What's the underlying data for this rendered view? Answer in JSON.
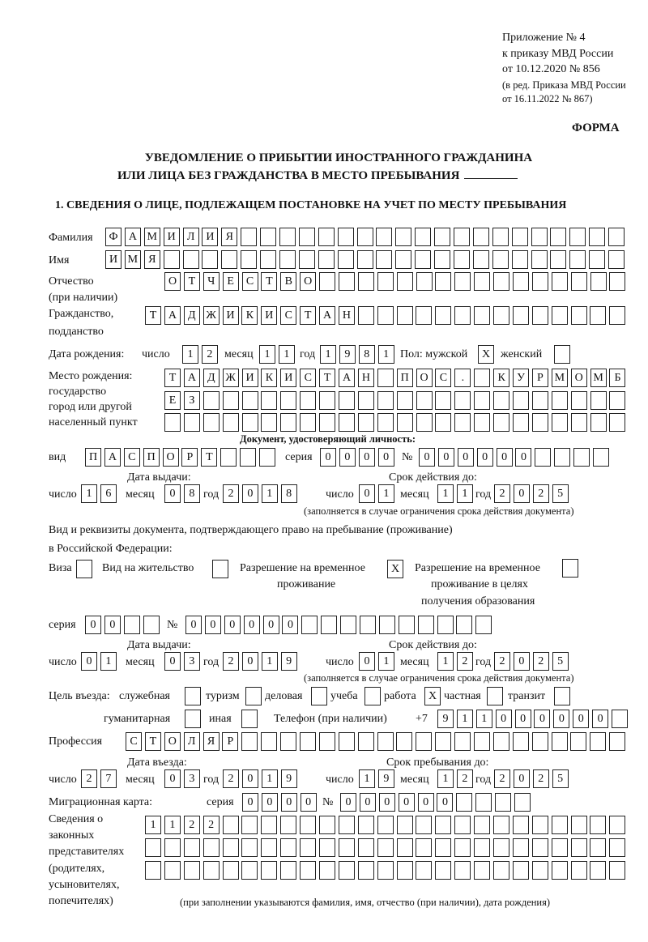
{
  "header": {
    "appendix": "Приложение № 4",
    "order": "к приказу МВД России",
    "order_date": "от 10.12.2020 № 856",
    "revision1": "(в ред. Приказа МВД России",
    "revision2": "от 16.11.2022 № 867)",
    "form_label": "ФОРМА",
    "title1": "УВЕДОМЛЕНИЕ О ПРИБЫТИИ ИНОСТРАННОГО ГРАЖДАНИНА",
    "title2": "ИЛИ ЛИЦА БЕЗ ГРАЖДАНСТВА В МЕСТО ПРЕБЫВАНИЯ",
    "section1": "1. СВЕДЕНИЯ О ЛИЦЕ, ПОДЛЕЖАЩЕМ ПОСТАНОВКЕ НА УЧЕТ ПО МЕСТУ ПРЕБЫВАНИЯ"
  },
  "person": {
    "surname_label": "Фамилия",
    "surname": [
      "Ф",
      "А",
      "М",
      "И",
      "Л",
      "И",
      "Я",
      "",
      "",
      "",
      "",
      "",
      "",
      "",
      "",
      "",
      "",
      "",
      "",
      "",
      "",
      "",
      "",
      "",
      "",
      "",
      ""
    ],
    "name_label": "Имя",
    "name": [
      "И",
      "М",
      "Я",
      "",
      "",
      "",
      "",
      "",
      "",
      "",
      "",
      "",
      "",
      "",
      "",
      "",
      "",
      "",
      "",
      "",
      "",
      "",
      "",
      "",
      "",
      "",
      ""
    ],
    "patronymic_label1": "Отчество",
    "patronymic_label2": "(при наличии)",
    "patronymic": [
      "О",
      "Т",
      "Ч",
      "Е",
      "С",
      "Т",
      "В",
      "О",
      "",
      "",
      "",
      "",
      "",
      "",
      "",
      "",
      "",
      "",
      "",
      "",
      "",
      "",
      "",
      ""
    ],
    "citizenship_label1": "Гражданство,",
    "citizenship_label2": "подданство",
    "citizenship": [
      "Т",
      "А",
      "Д",
      "Ж",
      "И",
      "К",
      "И",
      "С",
      "Т",
      "А",
      "Н",
      "",
      "",
      "",
      "",
      "",
      "",
      "",
      "",
      "",
      "",
      "",
      "",
      "",
      ""
    ],
    "birth_label": "Дата рождения:",
    "day_label": "число",
    "month_label": "месяц",
    "year_label": "год",
    "birth_day": [
      "1",
      "2"
    ],
    "birth_month": [
      "1",
      "1"
    ],
    "birth_year": [
      "1",
      "9",
      "8",
      "1"
    ],
    "sex_label": "Пол: мужской",
    "male": "X",
    "female_label": "женский",
    "female": "",
    "birthplace_label1": "Место рождения:",
    "birthplace_label2": "государство",
    "birthplace_label3": "город или другой",
    "birthplace_label4": "населенный пункт",
    "birthplace_row1": [
      "Т",
      "А",
      "Д",
      "Ж",
      "И",
      "К",
      "И",
      "С",
      "Т",
      "А",
      "Н",
      "",
      "П",
      "О",
      "С",
      ".",
      "",
      "К",
      "У",
      "Р",
      "М",
      "О",
      "М",
      "Б"
    ],
    "birthplace_row2": [
      "Е",
      "З",
      "",
      "",
      "",
      "",
      "",
      "",
      "",
      "",
      "",
      "",
      "",
      "",
      "",
      "",
      "",
      "",
      "",
      "",
      "",
      "",
      "",
      ""
    ],
    "birthplace_row3": [
      "",
      "",
      "",
      "",
      "",
      "",
      "",
      "",
      "",
      "",
      "",
      "",
      "",
      "",
      "",
      "",
      "",
      "",
      "",
      "",
      "",
      "",
      "",
      ""
    ]
  },
  "id_doc": {
    "heading": "Документ, удостоверяющий личность:",
    "kind_label": "вид",
    "kind": [
      "П",
      "А",
      "С",
      "П",
      "О",
      "Р",
      "Т",
      "",
      "",
      ""
    ],
    "series_label": "серия",
    "series": [
      "0",
      "0",
      "0",
      "0"
    ],
    "number_label": "№",
    "number": [
      "0",
      "0",
      "0",
      "0",
      "0",
      "0",
      "",
      "",
      "",
      ""
    ],
    "issue_label": "Дата выдачи:",
    "issue_day": [
      "1",
      "6"
    ],
    "issue_month": [
      "0",
      "8"
    ],
    "issue_year": [
      "2",
      "0",
      "1",
      "8"
    ],
    "valid_label": "Срок действия до:",
    "valid_day": [
      "0",
      "1"
    ],
    "valid_month": [
      "1",
      "1"
    ],
    "valid_year": [
      "2",
      "0",
      "2",
      "5"
    ],
    "valid_note": "(заполняется в случае ограничения срока действия документа)"
  },
  "stay_doc": {
    "heading1": "Вид и реквизиты документа, подтверждающего право на пребывание (проживание)",
    "heading2": "в Российской Федерации:",
    "visa_label": "Виза",
    "visa": "",
    "residence_label": "Вид на жительство",
    "residence": "",
    "temp_label1": "Разрешение на временное",
    "temp_label2": "проживание",
    "temp": "X",
    "edu_label1": "Разрешение на временное",
    "edu_label2": "проживание в целях",
    "edu_label3": "получения образования",
    "edu": "",
    "series_label": "серия",
    "series": [
      "0",
      "0",
      "",
      ""
    ],
    "number_label": "№",
    "number": [
      "0",
      "0",
      "0",
      "0",
      "0",
      "0",
      "",
      "",
      "",
      "",
      "",
      "",
      "",
      "",
      "",
      ""
    ],
    "issue_label": "Дата выдачи:",
    "issue_day": [
      "0",
      "1"
    ],
    "issue_month": [
      "0",
      "3"
    ],
    "issue_year": [
      "2",
      "0",
      "1",
      "9"
    ],
    "valid_label": "Срок действия до:",
    "valid_day": [
      "0",
      "1"
    ],
    "valid_month": [
      "1",
      "2"
    ],
    "valid_year": [
      "2",
      "0",
      "2",
      "5"
    ],
    "valid_note": "(заполняется в случае ограничения срока действия документа)"
  },
  "purpose": {
    "label": "Цель въезда:",
    "options": [
      {
        "label": "служебная",
        "value": ""
      },
      {
        "label": "туризм",
        "value": ""
      },
      {
        "label": "деловая",
        "value": ""
      },
      {
        "label": "учеба",
        "value": ""
      },
      {
        "label": "работа",
        "value": "X"
      },
      {
        "label": "частная",
        "value": ""
      },
      {
        "label": "транзит",
        "value": ""
      },
      {
        "label": "гуманитарная",
        "value": ""
      },
      {
        "label": "иная",
        "value": ""
      }
    ],
    "phone_label": "Телефон (при наличии)",
    "phone_prefix": "+7",
    "phone": [
      "9",
      "1",
      "1",
      "0",
      "0",
      "0",
      "0",
      "0",
      "0",
      ""
    ]
  },
  "profession": {
    "label": "Профессия",
    "value": [
      "С",
      "Т",
      "О",
      "Л",
      "Я",
      "Р",
      "",
      "",
      "",
      "",
      "",
      "",
      "",
      "",
      "",
      "",
      "",
      "",
      "",
      "",
      "",
      "",
      "",
      "",
      "",
      ""
    ]
  },
  "entry": {
    "entry_label": "Дата въезда:",
    "entry_day": [
      "2",
      "7"
    ],
    "entry_month": [
      "0",
      "3"
    ],
    "entry_year": [
      "2",
      "0",
      "1",
      "9"
    ],
    "stay_label": "Срок пребывания до:",
    "stay_day": [
      "1",
      "9"
    ],
    "stay_month": [
      "1",
      "2"
    ],
    "stay_year": [
      "2",
      "0",
      "2",
      "5"
    ]
  },
  "migration": {
    "label": "Миграционная карта:",
    "series_label": "серия",
    "series": [
      "0",
      "0",
      "0",
      "0"
    ],
    "number_label": "№",
    "number": [
      "0",
      "0",
      "0",
      "0",
      "0",
      "0",
      "",
      "",
      "",
      ""
    ]
  },
  "representatives": {
    "label1": "Сведения о",
    "label2": "законных",
    "label3": "представителях",
    "label4": "(родителях,",
    "label5": "усыновителях,",
    "label6": "попечителях)",
    "row1": [
      "1",
      "1",
      "2",
      "2",
      "",
      "",
      "",
      "",
      "",
      "",
      "",
      "",
      "",
      "",
      "",
      "",
      "",
      "",
      "",
      "",
      "",
      "",
      "",
      "",
      ""
    ],
    "row2": [
      "",
      "",
      "",
      "",
      "",
      "",
      "",
      "",
      "",
      "",
      "",
      "",
      "",
      "",
      "",
      "",
      "",
      "",
      "",
      "",
      "",
      "",
      "",
      "",
      ""
    ],
    "row3": [
      "",
      "",
      "",
      "",
      "",
      "",
      "",
      "",
      "",
      "",
      "",
      "",
      "",
      "",
      "",
      "",
      "",
      "",
      "",
      "",
      "",
      "",
      "",
      "",
      ""
    ],
    "note": "(при заполнении указываются фамилия, имя, отчество (при наличии), дата рождения)"
  }
}
